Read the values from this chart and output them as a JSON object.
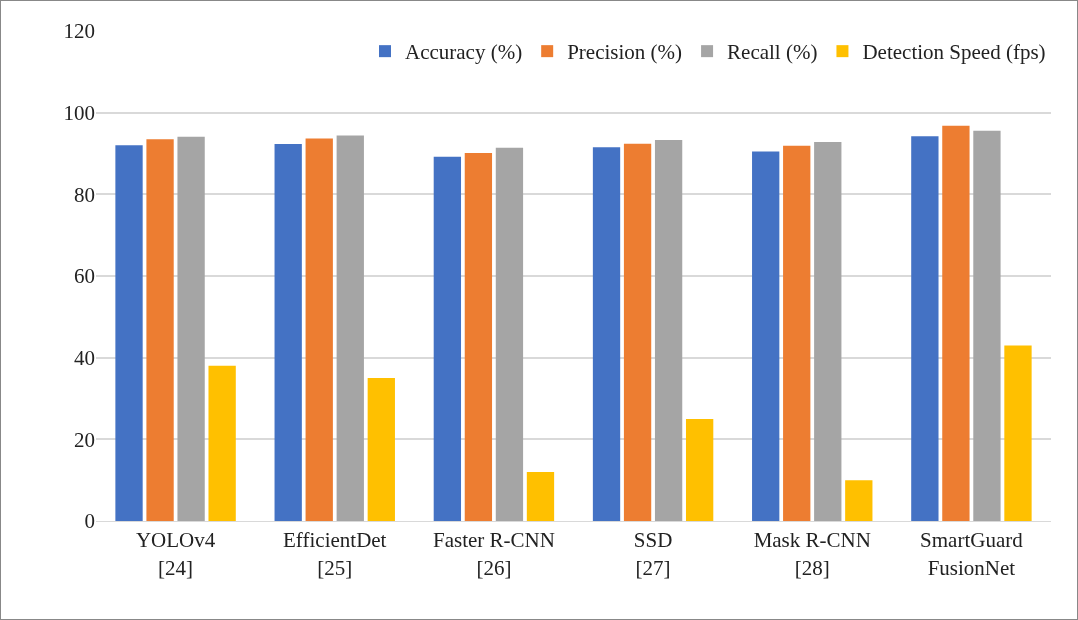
{
  "chart_data": {
    "type": "bar",
    "categories": [
      "YOLOv4 [24]",
      "EfficientDet [25]",
      "Faster R-CNN [26]",
      "SSD [27]",
      "Mask R-CNN [28]",
      "SmartGuard FusionNet"
    ],
    "series": [
      {
        "name": "Accuracy (%)",
        "color": "#4472c4",
        "values": [
          92,
          92.3,
          89.2,
          91.5,
          90.5,
          94.2
        ]
      },
      {
        "name": "Precision (%)",
        "color": "#ed7d31",
        "values": [
          93.5,
          93.7,
          90.1,
          92.4,
          91.9,
          96.8
        ]
      },
      {
        "name": "Recall (%)",
        "color": "#a5a5a5",
        "values": [
          94.1,
          94.4,
          91.4,
          93.3,
          92.8,
          95.6
        ]
      },
      {
        "name": "Detection Speed (fps)",
        "color": "#ffc000",
        "values": [
          38,
          35,
          12,
          25,
          10,
          43
        ]
      }
    ],
    "ylim": [
      0,
      120
    ],
    "yticks": [
      0,
      20,
      40,
      60,
      80,
      100,
      120
    ],
    "grid": "y",
    "legend": "top right"
  }
}
